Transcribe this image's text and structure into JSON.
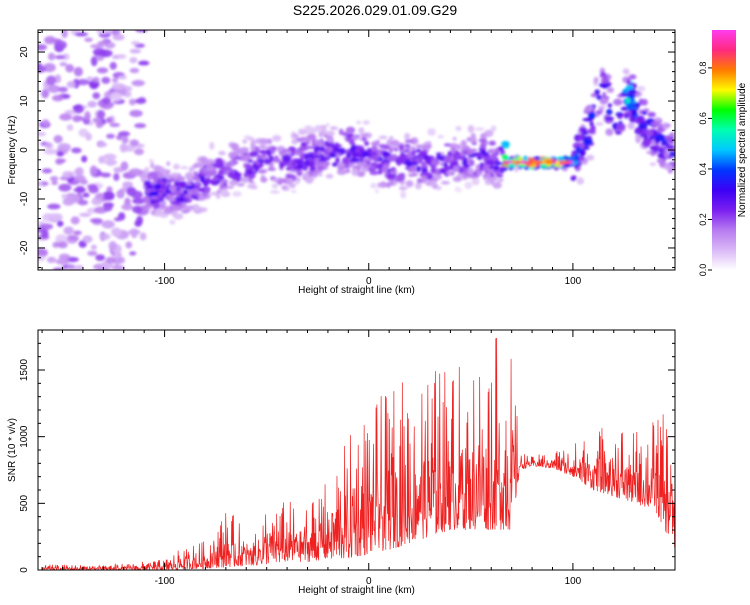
{
  "figure": {
    "title": "S225.2026.029.01.09.G29"
  },
  "colors": {
    "scatter_colormap": [
      "#ffffff",
      "#d9b8f7",
      "#b77af0",
      "#7a1ff0",
      "#3b00f5",
      "#0037ff",
      "#00c8ff",
      "#00ffb0",
      "#00ff00",
      "#fffa00",
      "#ff7a00",
      "#ff2a80",
      "#ff3cf0"
    ],
    "snr_line": "#ee2020",
    "axis": "#000000"
  },
  "chart_data": [
    {
      "type": "heatmap",
      "title": "",
      "xlabel": "Height of straight line (km)",
      "ylabel": "Frequency (Hz)",
      "xlim": [
        -162,
        150
      ],
      "ylim": [
        -24.5,
        24.5
      ],
      "xticks": [
        -100,
        0,
        100
      ],
      "yticks": [
        -20,
        -10,
        0,
        10,
        20
      ],
      "colorbar": {
        "label": "Normalized spectral amplitude",
        "range": [
          0.0,
          0.95
        ],
        "ticks": [
          "0.0",
          "0.2",
          "0.4",
          "0.6",
          "0.8"
        ]
      },
      "noise_region": {
        "x_range": [
          -162,
          -110
        ],
        "y_range": [
          -24.5,
          24.5
        ],
        "amplitude": 0.1
      },
      "ridge": [
        {
          "x": -110,
          "y": -9,
          "amp": 0.28
        },
        {
          "x": -100,
          "y": -8,
          "amp": 0.26
        },
        {
          "x": -90,
          "y": -9,
          "amp": 0.26
        },
        {
          "x": -80,
          "y": -6,
          "amp": 0.26
        },
        {
          "x": -70,
          "y": -4,
          "amp": 0.24
        },
        {
          "x": -60,
          "y": -3,
          "amp": 0.24
        },
        {
          "x": -50,
          "y": -2,
          "amp": 0.26
        },
        {
          "x": -40,
          "y": -3,
          "amp": 0.24
        },
        {
          "x": -30,
          "y": -1,
          "amp": 0.26
        },
        {
          "x": -20,
          "y": -1,
          "amp": 0.28
        },
        {
          "x": -10,
          "y": 0,
          "amp": 0.28
        },
        {
          "x": 0,
          "y": -1,
          "amp": 0.27
        },
        {
          "x": 10,
          "y": -3,
          "amp": 0.26
        },
        {
          "x": 20,
          "y": -2,
          "amp": 0.26
        },
        {
          "x": 30,
          "y": -3,
          "amp": 0.26
        },
        {
          "x": 40,
          "y": -2,
          "amp": 0.26
        },
        {
          "x": 50,
          "y": -1,
          "amp": 0.26
        },
        {
          "x": 60,
          "y": -2,
          "amp": 0.26
        },
        {
          "x": 65,
          "y": -2,
          "amp": 0.3
        },
        {
          "x": 68,
          "y": -2.5,
          "amp": 0.85
        },
        {
          "x": 75,
          "y": -2.5,
          "amp": 0.92
        },
        {
          "x": 82,
          "y": -2.5,
          "amp": 0.88
        },
        {
          "x": 90,
          "y": -2.5,
          "amp": 0.92
        },
        {
          "x": 97,
          "y": -2.5,
          "amp": 0.85
        },
        {
          "x": 100,
          "y": -2.5,
          "amp": 0.4
        },
        {
          "x": 104,
          "y": 0,
          "amp": 0.3
        },
        {
          "x": 108,
          "y": 4,
          "amp": 0.35
        },
        {
          "x": 112,
          "y": 10,
          "amp": 0.3
        },
        {
          "x": 115,
          "y": 14,
          "amp": 0.25
        },
        {
          "x": 118,
          "y": 8,
          "amp": 0.3
        },
        {
          "x": 121,
          "y": 5,
          "amp": 0.32
        },
        {
          "x": 125,
          "y": 9,
          "amp": 0.35
        },
        {
          "x": 128,
          "y": 12,
          "amp": 0.5
        },
        {
          "x": 132,
          "y": 7,
          "amp": 0.3
        },
        {
          "x": 136,
          "y": 5,
          "amp": 0.32
        },
        {
          "x": 140,
          "y": 3,
          "amp": 0.3
        },
        {
          "x": 145,
          "y": 1,
          "amp": 0.3
        },
        {
          "x": 150,
          "y": -1,
          "amp": 0.28
        }
      ]
    },
    {
      "type": "line",
      "title": "",
      "xlabel": "Height of straight line (km)",
      "ylabel": "SNR (10 * v/v)",
      "xlim": [
        -162,
        150
      ],
      "ylim": [
        0,
        1800
      ],
      "xticks": [
        -100,
        0,
        100
      ],
      "yticks": [
        0,
        500,
        1000,
        1500
      ],
      "series": [
        {
          "x": [
            -160,
            -140,
            -120,
            -100,
            -90,
            -80,
            -70,
            -60,
            -50,
            -40,
            -30,
            -20,
            -10,
            0,
            10,
            20,
            30,
            40,
            50,
            60,
            70,
            74,
            80,
            90,
            100,
            110,
            120,
            130,
            140,
            150
          ],
          "min": [
            0,
            0,
            0,
            0,
            5,
            10,
            20,
            30,
            40,
            60,
            60,
            80,
            80,
            120,
            150,
            200,
            250,
            300,
            300,
            300,
            300,
            750,
            780,
            760,
            700,
            600,
            550,
            500,
            450,
            150
          ],
          "max": [
            40,
            40,
            50,
            80,
            180,
            220,
            480,
            300,
            520,
            520,
            540,
            680,
            1000,
            1250,
            1350,
            1500,
            1550,
            1520,
            1600,
            1780,
            1700,
            900,
            850,
            900,
            950,
            1050,
            1150,
            1050,
            1150,
            1200
          ]
        }
      ]
    }
  ]
}
